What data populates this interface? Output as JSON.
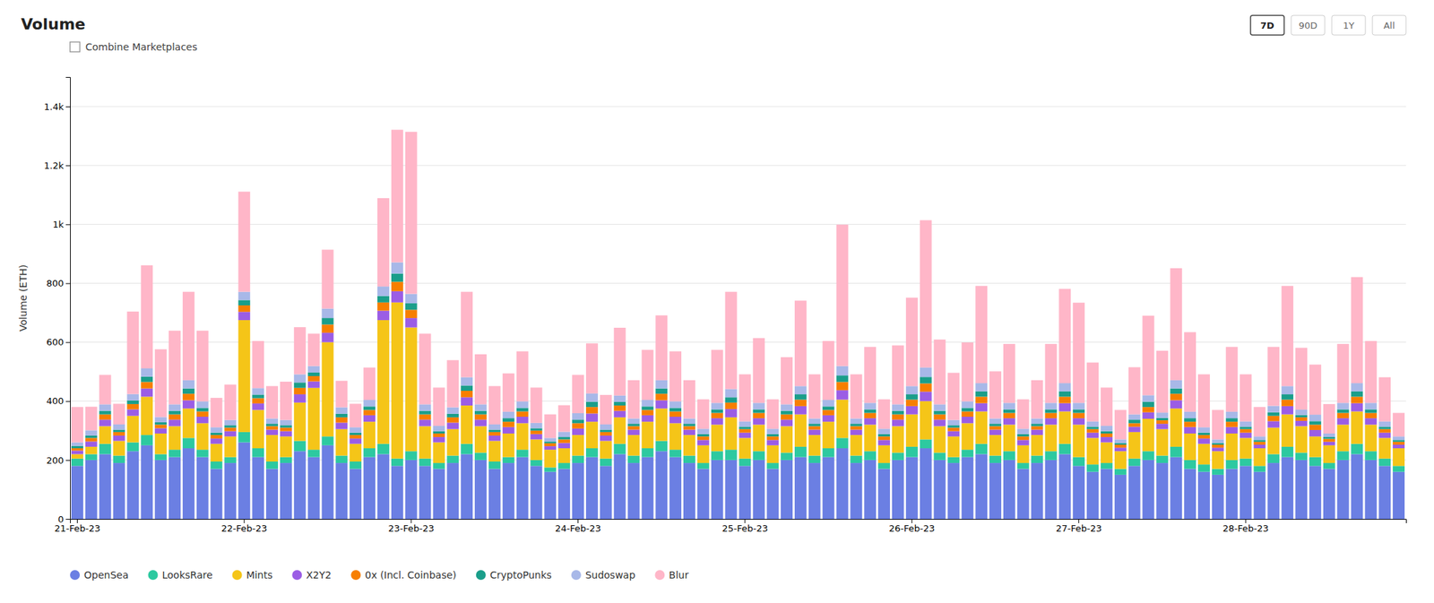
{
  "chart_data": {
    "type": "bar",
    "stacked": true,
    "title": "Volume",
    "ylabel": "Volume (ETH)",
    "annotations": [
      "Combine Marketplaces",
      "7D",
      "90D",
      "1Y",
      "All"
    ],
    "categories": [
      "21-Feb-23",
      null,
      null,
      null,
      null,
      null,
      null,
      null,
      null,
      null,
      null,
      null,
      "22-Feb-23",
      null,
      null,
      null,
      null,
      null,
      null,
      null,
      null,
      null,
      null,
      null,
      "23-Feb-23",
      null,
      null,
      null,
      null,
      null,
      null,
      null,
      null,
      null,
      null,
      null,
      "24-Feb-23",
      null,
      null,
      null,
      null,
      null,
      null,
      null,
      null,
      null,
      null,
      null,
      "25-Feb-23",
      null,
      null,
      null,
      null,
      null,
      null,
      null,
      null,
      null,
      null,
      null,
      "26-Feb-23",
      null,
      null,
      null,
      null,
      null,
      null,
      null,
      null,
      null,
      null,
      null,
      "27-Feb-23",
      null,
      null,
      null,
      null,
      null,
      null,
      null,
      null,
      null,
      null,
      null,
      "28-Feb-23",
      null,
      null,
      null,
      null,
      null,
      null,
      null,
      null,
      null,
      null,
      null
    ],
    "series": [
      {
        "name": "OpenSea",
        "color": "#6b7fe3",
        "values": [
          180,
          200,
          220,
          190,
          230,
          250,
          200,
          210,
          240,
          210,
          170,
          190,
          260,
          210,
          170,
          190,
          230,
          210,
          250,
          190,
          170,
          210,
          220,
          180,
          200,
          180,
          170,
          190,
          220,
          200,
          170,
          190,
          210,
          180,
          160,
          170,
          190,
          210,
          180,
          220,
          190,
          210,
          230,
          210,
          190,
          170,
          200,
          200,
          180,
          200,
          170,
          200,
          210,
          190,
          210,
          240,
          190,
          200,
          170,
          200,
          210,
          240,
          200,
          190,
          210,
          220,
          190,
          200,
          170,
          190,
          200,
          220,
          180,
          160,
          170,
          150,
          180,
          200,
          190,
          210,
          170,
          160,
          150,
          170,
          180,
          160,
          190,
          210,
          200,
          180,
          170,
          200,
          220,
          200,
          180,
          160
        ]
      },
      {
        "name": "LooksRare",
        "color": "#2dc9a0",
        "values": [
          25,
          20,
          35,
          25,
          30,
          35,
          20,
          25,
          35,
          25,
          25,
          20,
          35,
          30,
          25,
          20,
          35,
          25,
          30,
          25,
          25,
          30,
          35,
          25,
          30,
          25,
          20,
          25,
          35,
          25,
          25,
          20,
          25,
          20,
          15,
          20,
          25,
          30,
          25,
          35,
          25,
          30,
          35,
          25,
          25,
          20,
          30,
          35,
          25,
          30,
          20,
          25,
          35,
          25,
          30,
          35,
          25,
          30,
          20,
          25,
          35,
          30,
          25,
          20,
          25,
          35,
          25,
          30,
          20,
          25,
          30,
          35,
          30,
          25,
          20,
          20,
          25,
          30,
          25,
          35,
          30,
          25,
          20,
          30,
          25,
          20,
          30,
          35,
          25,
          30,
          20,
          30,
          35,
          30,
          25,
          20
        ]
      },
      {
        "name": "Mints",
        "color": "#f5c518",
        "values": [
          15,
          25,
          60,
          50,
          90,
          130,
          70,
          80,
          100,
          90,
          60,
          70,
          380,
          130,
          90,
          70,
          130,
          210,
          320,
          90,
          60,
          90,
          420,
          530,
          420,
          110,
          70,
          90,
          130,
          90,
          70,
          80,
          90,
          70,
          60,
          50,
          70,
          90,
          60,
          90,
          70,
          90,
          110,
          90,
          70,
          60,
          90,
          110,
          70,
          90,
          60,
          90,
          110,
          70,
          90,
          130,
          70,
          90,
          60,
          90,
          110,
          130,
          90,
          70,
          90,
          110,
          70,
          90,
          60,
          70,
          90,
          110,
          110,
          90,
          70,
          60,
          90,
          110,
          90,
          130,
          90,
          70,
          60,
          90,
          70,
          60,
          90,
          110,
          90,
          70,
          60,
          90,
          110,
          90,
          70,
          60
        ]
      },
      {
        "name": "X2Y2",
        "color": "#9b5de5",
        "values": [
          12,
          18,
          22,
          18,
          22,
          28,
          18,
          22,
          28,
          22,
          18,
          18,
          28,
          22,
          18,
          18,
          28,
          22,
          32,
          22,
          18,
          22,
          32,
          38,
          32,
          22,
          18,
          22,
          28,
          22,
          18,
          22,
          22,
          18,
          12,
          18,
          22,
          28,
          18,
          22,
          18,
          22,
          28,
          22,
          18,
          18,
          22,
          28,
          18,
          22,
          18,
          22,
          28,
          18,
          22,
          32,
          18,
          22,
          18,
          22,
          28,
          32,
          22,
          18,
          22,
          28,
          18,
          22,
          18,
          18,
          22,
          28,
          22,
          18,
          18,
          12,
          18,
          22,
          18,
          28,
          22,
          18,
          12,
          22,
          18,
          12,
          22,
          28,
          18,
          22,
          12,
          22,
          28,
          22,
          18,
          12
        ]
      },
      {
        "name": "0x (Incl. Coinbase)",
        "color": "#f77f00",
        "values": [
          8,
          12,
          18,
          12,
          18,
          22,
          12,
          18,
          22,
          18,
          12,
          12,
          22,
          18,
          12,
          12,
          22,
          18,
          28,
          18,
          12,
          18,
          28,
          32,
          28,
          18,
          12,
          18,
          22,
          18,
          12,
          18,
          18,
          12,
          10,
          12,
          18,
          22,
          12,
          18,
          12,
          18,
          22,
          18,
          12,
          12,
          18,
          22,
          12,
          18,
          12,
          18,
          22,
          12,
          18,
          28,
          12,
          18,
          12,
          18,
          22,
          28,
          18,
          12,
          18,
          22,
          12,
          18,
          12,
          12,
          18,
          22,
          18,
          12,
          12,
          10,
          12,
          18,
          12,
          22,
          18,
          12,
          10,
          18,
          12,
          10,
          18,
          22,
          12,
          18,
          10,
          18,
          22,
          18,
          12,
          10
        ]
      },
      {
        "name": "CryptoPunks",
        "color": "#1a9e8a",
        "values": [
          8,
          8,
          12,
          8,
          12,
          18,
          8,
          12,
          18,
          12,
          8,
          8,
          18,
          12,
          8,
          8,
          18,
          12,
          22,
          12,
          8,
          12,
          22,
          28,
          22,
          12,
          8,
          12,
          18,
          12,
          8,
          12,
          12,
          8,
          6,
          8,
          12,
          18,
          8,
          12,
          8,
          12,
          18,
          12,
          8,
          8,
          12,
          18,
          8,
          12,
          8,
          12,
          18,
          8,
          12,
          22,
          8,
          12,
          8,
          12,
          18,
          22,
          12,
          8,
          12,
          18,
          8,
          12,
          8,
          8,
          12,
          18,
          12,
          8,
          8,
          6,
          12,
          18,
          8,
          18,
          12,
          8,
          6,
          12,
          8,
          6,
          12,
          18,
          8,
          12,
          6,
          12,
          18,
          12,
          8,
          6
        ]
      },
      {
        "name": "Sudoswap",
        "color": "#a8b8e8",
        "values": [
          12,
          18,
          22,
          18,
          22,
          28,
          18,
          22,
          28,
          22,
          18,
          18,
          28,
          22,
          18,
          18,
          28,
          22,
          32,
          22,
          18,
          22,
          32,
          38,
          32,
          22,
          18,
          22,
          28,
          22,
          18,
          22,
          22,
          18,
          12,
          18,
          22,
          28,
          18,
          22,
          18,
          22,
          28,
          22,
          18,
          18,
          22,
          28,
          18,
          22,
          18,
          22,
          28,
          18,
          22,
          32,
          18,
          22,
          18,
          22,
          28,
          32,
          22,
          18,
          22,
          28,
          18,
          22,
          18,
          18,
          22,
          28,
          22,
          18,
          18,
          12,
          18,
          22,
          18,
          28,
          22,
          18,
          12,
          22,
          18,
          12,
          22,
          28,
          18,
          22,
          12,
          22,
          28,
          22,
          18,
          12
        ]
      },
      {
        "name": "Blur",
        "color": "#ffb6c8",
        "values": [
          120,
          80,
          100,
          70,
          280,
          350,
          230,
          250,
          300,
          240,
          100,
          120,
          340,
          160,
          110,
          130,
          160,
          110,
          200,
          90,
          80,
          110,
          300,
          450,
          550,
          240,
          130,
          160,
          290,
          170,
          130,
          130,
          170,
          120,
          80,
          90,
          130,
          170,
          100,
          230,
          130,
          170,
          220,
          170,
          130,
          100,
          180,
          330,
          160,
          220,
          100,
          160,
          290,
          150,
          200,
          480,
          150,
          190,
          100,
          200,
          300,
          500,
          220,
          160,
          200,
          330,
          160,
          200,
          100,
          130,
          200,
          320,
          340,
          200,
          130,
          100,
          160,
          270,
          210,
          380,
          270,
          180,
          100,
          220,
          160,
          100,
          200,
          340,
          210,
          170,
          100,
          200,
          360,
          210,
          150,
          80
        ]
      }
    ],
    "ylim": [
      0,
      1500
    ],
    "yticks": [
      0,
      200,
      400,
      600,
      800,
      {
        "value": 1000,
        "label": "1k"
      },
      {
        "value": 1200,
        "label": "1.2k"
      },
      {
        "value": 1400,
        "label": "1.4k"
      }
    ],
    "grid": true,
    "legend": "bottom"
  }
}
